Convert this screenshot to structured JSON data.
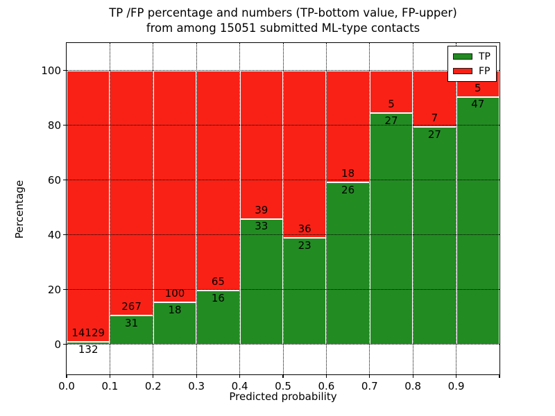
{
  "title": {
    "line1": "TP /FP percentage and numbers (TP-bottom value, FP-upper)",
    "line2": "from among 15051 submitted ML-type contacts"
  },
  "chart_data": {
    "type": "bar",
    "subtype": "stacked-normalized-percent",
    "title": "TP /FP percentage and numbers (TP-bottom value, FP-upper) from among 15051 submitted ML-type contacts",
    "xlabel": "Predicted probability",
    "ylabel": "Percentage",
    "total_contacts": 15051,
    "bin_edges": [
      0.0,
      0.1,
      0.2,
      0.3,
      0.4,
      0.5,
      0.6,
      0.7,
      0.8,
      0.9,
      1.0
    ],
    "categories": [
      "0.0-0.1",
      "0.1-0.2",
      "0.2-0.3",
      "0.3-0.4",
      "0.4-0.5",
      "0.5-0.6",
      "0.6-0.7",
      "0.7-0.8",
      "0.8-0.9",
      "0.9-1.0"
    ],
    "series": [
      {
        "name": "TP",
        "color": "#228b22",
        "counts": [
          132,
          31,
          18,
          16,
          33,
          23,
          26,
          27,
          27,
          47
        ]
      },
      {
        "name": "FP",
        "color": "#f92116",
        "counts": [
          14129,
          267,
          100,
          65,
          39,
          36,
          18,
          5,
          7,
          5
        ]
      }
    ],
    "tp_percent_of_bin": [
      0.93,
      10.4,
      15.25,
      19.75,
      45.83,
      38.98,
      59.09,
      84.38,
      79.41,
      90.38
    ],
    "x_tick_labels": [
      "0.0",
      "0.1",
      "0.2",
      "0.3",
      "0.4",
      "0.5",
      "0.6",
      "0.7",
      "0.8",
      "0.9"
    ],
    "y_ticks": [
      0,
      20,
      40,
      60,
      80,
      100
    ],
    "y_tick_labels": [
      "0",
      "20",
      "40",
      "60",
      "80",
      "100"
    ],
    "xlim": [
      0,
      1
    ],
    "ylim": [
      -11,
      110
    ],
    "grid": "dotted",
    "legend_position": "upper right"
  },
  "legend": {
    "items": [
      {
        "label": "TP",
        "color": "#228b22"
      },
      {
        "label": "FP",
        "color": "#f92116"
      }
    ]
  }
}
